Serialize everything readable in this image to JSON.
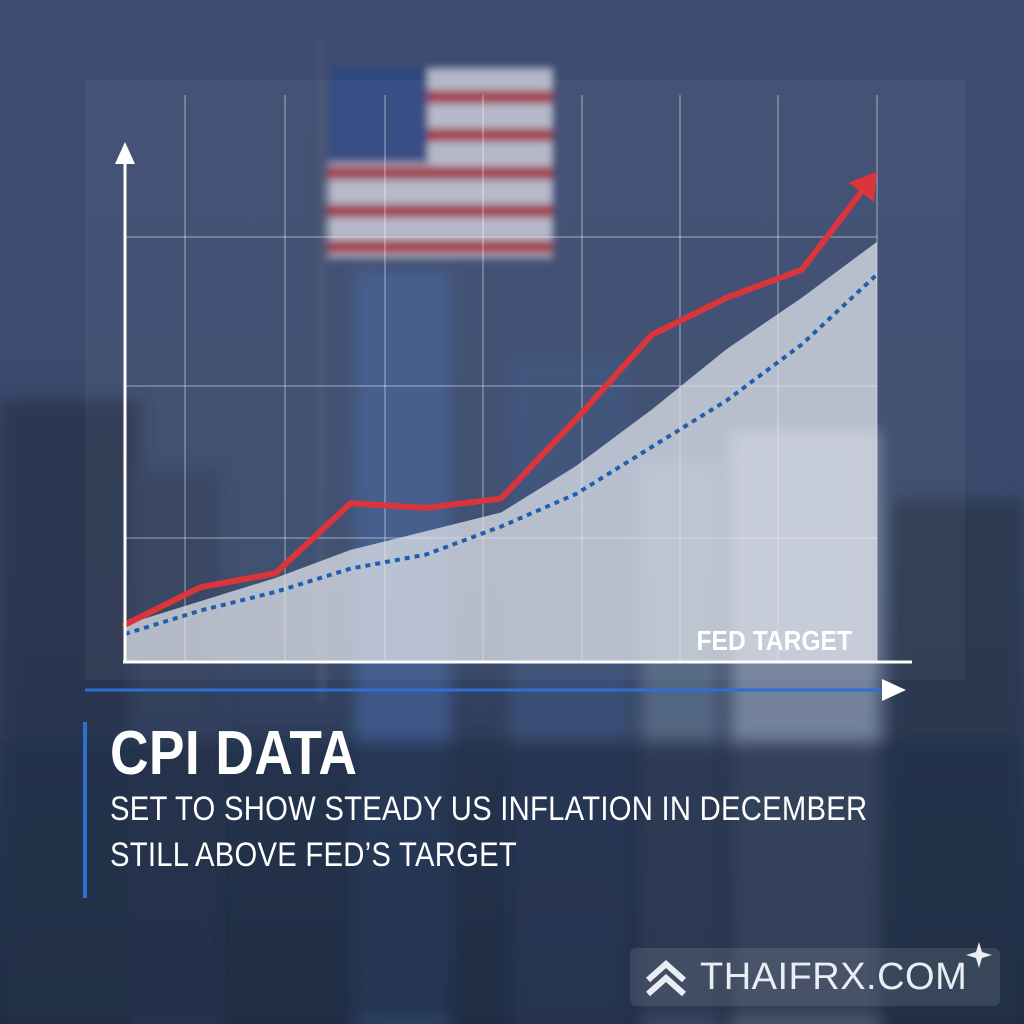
{
  "headline": {
    "title": "CPI DATA",
    "line1": "SET TO SHOW STEADY US INFLATION IN DECEMBER",
    "line2": "STILL ABOVE FED’S TARGET"
  },
  "watermark": {
    "text": "THAIFRX.COM",
    "icon": "chevron-up-logo-icon"
  },
  "colors": {
    "cpi_line": "#d9353a",
    "target_line": "#1f5fae",
    "accent": "#2f6fd0",
    "area_fill": "#e4e8ef"
  },
  "chart_data": {
    "type": "line",
    "x": [
      0,
      1,
      2,
      3,
      4,
      5,
      6,
      7,
      8,
      9,
      10
    ],
    "ylim": [
      0,
      100
    ],
    "xlim": [
      0,
      10
    ],
    "grid": true,
    "xlabel": "",
    "ylabel": "",
    "series": [
      {
        "name": "",
        "values": [
          8,
          16,
          19,
          34,
          33,
          35,
          52,
          70,
          78,
          84,
          105
        ]
      },
      {
        "name": "FED TARGET",
        "values": [
          6,
          11,
          15,
          20,
          23,
          29,
          36,
          46,
          56,
          68,
          83
        ]
      },
      {
        "name": "",
        "values": [
          8,
          13,
          18,
          24,
          28,
          32,
          42,
          54,
          67,
          78,
          90
        ]
      }
    ],
    "annotations": [
      {
        "text": "FED TARGET"
      }
    ]
  }
}
